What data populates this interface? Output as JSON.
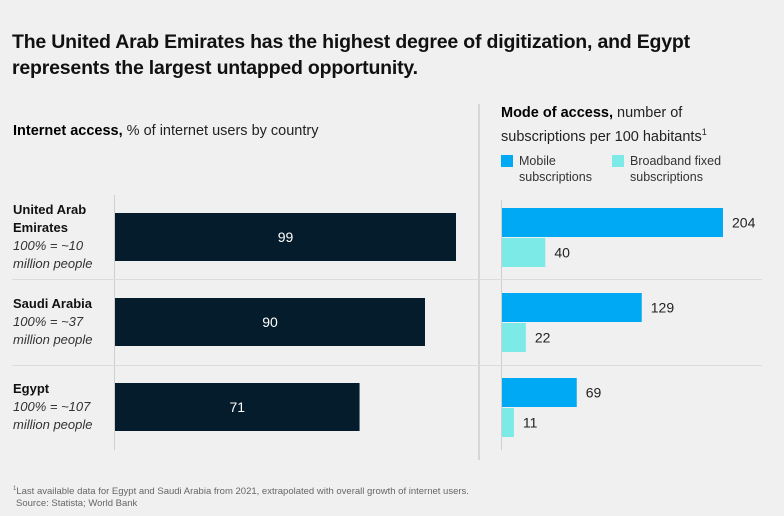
{
  "title": "The United Arab Emirates has the highest degree of digitization, and Egypt represents the largest untapped opportunity.",
  "left_panel": {
    "subtitle_bold": "Internet access,",
    "subtitle_rest": " % of internet users by country"
  },
  "right_panel": {
    "subtitle_bold": "Mode of access,",
    "subtitle_rest": " number of subscriptions per 100 habitants",
    "subtitle_footnote_mark": "1",
    "legend": [
      {
        "label": "Mobile subscriptions",
        "color": "#00a9f4"
      },
      {
        "label": "Broadband fixed subscriptions",
        "color": "#7ceae6"
      }
    ]
  },
  "countries": [
    {
      "name": "United Arab Emirates",
      "population_note": "100% = ~10 million people"
    },
    {
      "name": "Saudi Arabia",
      "population_note": "100% = ~37 million people"
    },
    {
      "name": "Egypt",
      "population_note": "100% = ~107 million people"
    }
  ],
  "footnote": {
    "mark": "1",
    "text": "Last available data for Egypt and Saudi Arabia from 2021, extrapolated with overall growth of internet users.",
    "source": "Source: Statista; World Bank"
  },
  "chart_data": [
    {
      "type": "bar",
      "orientation": "horizontal",
      "title": "Internet access, % of internet users by country",
      "categories": [
        "United Arab Emirates",
        "Saudi Arabia",
        "Egypt"
      ],
      "values": [
        99,
        90,
        71
      ],
      "value_labels": [
        "99",
        "90",
        "71"
      ],
      "xlim": [
        0,
        100
      ],
      "bar_color": "#051c2c",
      "label_color": "#ffffff",
      "grid": false
    },
    {
      "type": "bar",
      "orientation": "horizontal",
      "title": "Mode of access, number of subscriptions per 100 habitants",
      "categories": [
        "United Arab Emirates",
        "Saudi Arabia",
        "Egypt"
      ],
      "series": [
        {
          "name": "Mobile subscriptions",
          "values": [
            204,
            129,
            69
          ],
          "color": "#00a9f4"
        },
        {
          "name": "Broadband fixed subscriptions",
          "values": [
            40,
            22,
            11
          ],
          "color": "#7ceae6"
        }
      ],
      "legend": "top-left",
      "grid": false
    }
  ]
}
